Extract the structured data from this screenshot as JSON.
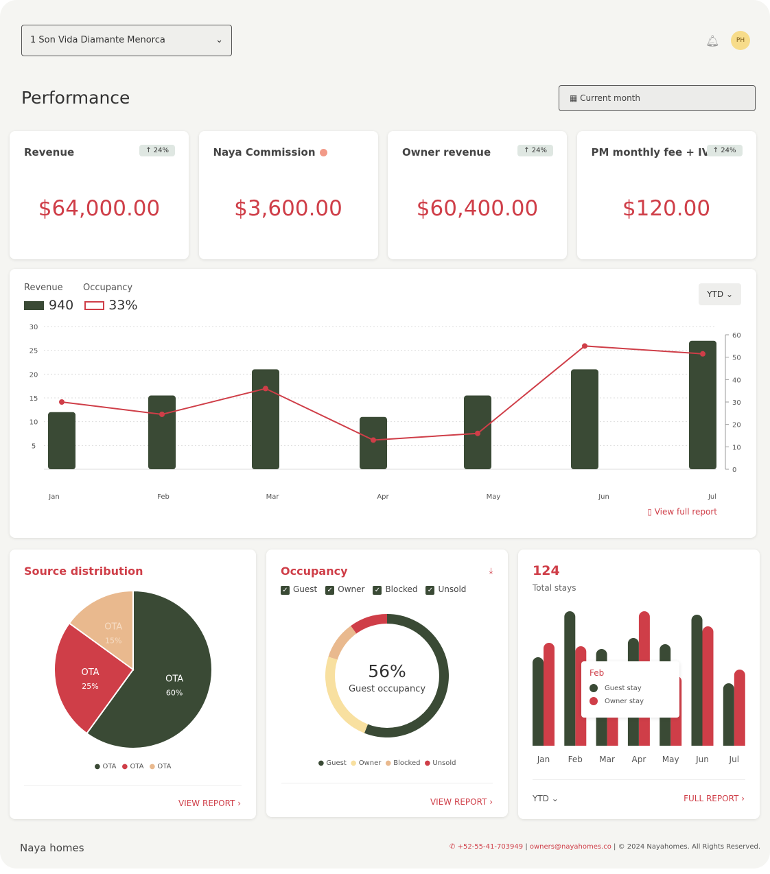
{
  "header": {
    "property": "1 Son Vida Diamante Menorca",
    "avatar": "PH",
    "title": "Performance",
    "period": "Current month"
  },
  "kpis": [
    {
      "title": "Revenue",
      "badge": "↑ 24%",
      "value": "$64,000.00"
    },
    {
      "title": "Naya Commission",
      "badge": "",
      "value": "$3,600.00"
    },
    {
      "title": "Owner revenue",
      "badge": "↑ 24%",
      "value": "$60,400.00"
    },
    {
      "title": "PM monthly fee + IVA",
      "badge": "↑ 24%",
      "value": "$120.00"
    }
  ],
  "colors": {
    "green": "#3a4a35",
    "red": "#cf3e48",
    "tan": "#e9b98e",
    "yellow": "#f8e0a0"
  },
  "chart_data": [
    {
      "type": "bar",
      "title": "Revenue / Occupancy",
      "legend": {
        "revenue_label": "Revenue",
        "revenue_value": "940",
        "occupancy_label": "Occupancy",
        "occupancy_value": "33%"
      },
      "range_select": "YTD",
      "categories": [
        "Jan",
        "Feb",
        "Mar",
        "Apr",
        "May",
        "Jun",
        "Jul"
      ],
      "series": [
        {
          "name": "Revenue",
          "axis": "left",
          "values": [
            12,
            15.5,
            21,
            11,
            15.5,
            21,
            27
          ]
        },
        {
          "name": "Occupancy",
          "axis": "right",
          "type": "line",
          "values": [
            30,
            24.5,
            36,
            13,
            16,
            55,
            51.5
          ]
        }
      ],
      "ylim": [
        0,
        30
      ],
      "yticks": [
        "5",
        "10",
        "15",
        "20",
        "25",
        "30"
      ],
      "y2lim": [
        0,
        60
      ],
      "y2ticks": [
        "0",
        "10",
        "20",
        "30",
        "40",
        "50",
        "60"
      ],
      "link": "View full report"
    },
    {
      "type": "pie",
      "title": "Source distribution",
      "slices": [
        {
          "label": "OTA",
          "pct": "60%",
          "value": 60
        },
        {
          "label": "OTA",
          "pct": "25%",
          "value": 25
        },
        {
          "label": "OTA",
          "pct": "15%",
          "value": 15
        }
      ],
      "legend": [
        "OTA",
        "OTA",
        "OTA"
      ],
      "link": "VIEW REPORT"
    },
    {
      "type": "pie",
      "title": "Occupancy",
      "filters": [
        "Guest",
        "Owner",
        "Blocked",
        "Unsold"
      ],
      "center_value": "56%",
      "center_label": "Guest occupancy",
      "slices": [
        {
          "label": "Guest",
          "value": 56
        },
        {
          "label": "Owner",
          "value": 24
        },
        {
          "label": "Blocked",
          "value": 10
        },
        {
          "label": "Unsold",
          "value": 10
        }
      ],
      "link": "VIEW REPORT"
    },
    {
      "type": "bar",
      "title": "124",
      "subtitle": "Total stays",
      "categories": [
        "Jan",
        "Feb",
        "Mar",
        "Apr",
        "May",
        "Jun",
        "Jul"
      ],
      "series": [
        {
          "name": "Guest stay",
          "values": [
            129,
            196,
            141,
            157,
            148,
            191,
            91
          ]
        },
        {
          "name": "Owner stay",
          "values": [
            150,
            145,
            110,
            196,
            102,
            174,
            111
          ]
        }
      ],
      "tooltip": {
        "title": "Feb",
        "items": [
          "Guest stay",
          "Owner stay"
        ]
      },
      "range_select": "YTD",
      "link": "FULL REPORT"
    }
  ],
  "footer": {
    "logo": "Naya homes",
    "phone": "+52-55-41-703949",
    "email": "owners@nayahomes.co",
    "copyright": "© 2024 Nayahomes. All Rights Reserved."
  }
}
